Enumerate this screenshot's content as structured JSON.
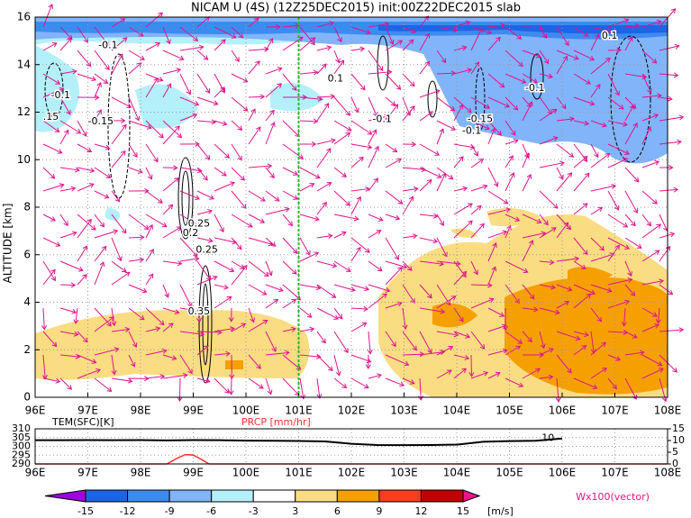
{
  "chart_data": {
    "type": "contour",
    "title": "NICAM U (4S) (12Z25DEC2015) init:00Z22DEC2015 slab",
    "y_label": "ALTITUDE [km]",
    "xlim": [
      96,
      108
    ],
    "xticks": [
      {
        "value": 96,
        "label": "96E"
      },
      {
        "value": 97,
        "label": "97E"
      },
      {
        "value": 98,
        "label": "98E"
      },
      {
        "value": 99,
        "label": "99E"
      },
      {
        "value": 100,
        "label": "100E"
      },
      {
        "value": 101,
        "label": "101E"
      },
      {
        "value": 102,
        "label": "102E"
      },
      {
        "value": 103,
        "label": "103E"
      },
      {
        "value": 104,
        "label": "104E"
      },
      {
        "value": 105,
        "label": "105E"
      },
      {
        "value": 106,
        "label": "106E"
      },
      {
        "value": 107,
        "label": "107E"
      },
      {
        "value": 108,
        "label": "108E"
      }
    ],
    "ylim": [
      0,
      16
    ],
    "yticks": [
      0,
      2,
      4,
      6,
      8,
      10,
      12,
      14,
      16
    ],
    "grid": true,
    "marker_line": {
      "x": 101,
      "color": "#22bb22"
    },
    "contour_labels": [
      {
        "text": "-0.1",
        "x": 96.3,
        "y": 12.7
      },
      {
        "text": ".15",
        "x": 96.15,
        "y": 11.8
      },
      {
        "text": "-0.1",
        "x": 97.2,
        "y": 14.8
      },
      {
        "text": "-0.15",
        "x": 97.0,
        "y": 11.6
      },
      {
        "text": "0.25",
        "x": 98.9,
        "y": 7.3
      },
      {
        "text": "0.2",
        "x": 98.8,
        "y": 6.9
      },
      {
        "text": "0.25",
        "x": 99.05,
        "y": 6.2
      },
      {
        "text": "0.35",
        "x": 98.9,
        "y": 3.6
      },
      {
        "text": "0.1",
        "x": 101.55,
        "y": 13.4
      },
      {
        "text": "-0.1",
        "x": 102.4,
        "y": 11.7
      },
      {
        "text": "-0.15",
        "x": 104.2,
        "y": 11.7
      },
      {
        "text": "-0.1",
        "x": 104.1,
        "y": 11.2
      },
      {
        "text": "-0.1",
        "x": 105.3,
        "y": 13.0
      },
      {
        "text": "0.1",
        "x": 106.75,
        "y": 15.2
      }
    ],
    "lower_panel": {
      "left_label": "TEM(SFC)[K]",
      "right_label": "PRCP [mm/hr]",
      "ylim": [
        290,
        310
      ],
      "yticks": [
        290,
        295,
        300,
        305,
        310
      ],
      "y2lim": [
        0,
        15
      ],
      "y2ticks": [
        0,
        5,
        10,
        15
      ],
      "annotation": {
        "text": "10",
        "x": 105.85,
        "y": 304.5
      },
      "series": [
        {
          "name": "TEM(SFC)",
          "color": "#000000",
          "x": [
            96,
            96.5,
            97,
            97.5,
            98,
            98.5,
            99,
            99.5,
            100,
            100.5,
            101,
            101.5,
            102,
            102.5,
            103,
            103.5,
            104,
            104.5,
            105,
            105.5,
            106
          ],
          "values": [
            303.5,
            303.5,
            303.6,
            303.5,
            303.6,
            303.4,
            303.6,
            303.5,
            303.3,
            303.2,
            303.1,
            302.8,
            301.5,
            300.8,
            300.7,
            300.8,
            301.0,
            302.6,
            303.0,
            303.2,
            304.5
          ]
        },
        {
          "name": "PRCP",
          "color": "#ff3030",
          "axis": "y2",
          "x": [
            96,
            98.5,
            98.7,
            98.85,
            99.0,
            99.15,
            99.3,
            101,
            104,
            106,
            108
          ],
          "values": [
            0,
            0,
            2.5,
            4,
            3.8,
            2,
            0,
            0,
            0,
            0,
            0
          ]
        }
      ]
    },
    "colorbar": {
      "levels": [
        -15,
        -12,
        -9,
        -6,
        -3,
        3,
        6,
        9,
        12,
        15
      ],
      "colors": [
        "#a000e0",
        "#1e64e6",
        "#3c8cf0",
        "#82b4fa",
        "#b4f0fa",
        "#ffffff",
        "#fadc82",
        "#f5a000",
        "#fa3c1e",
        "#c00000",
        "#f0148c"
      ],
      "unit": "[m/s]",
      "vector_label": "Wx100(vector)"
    }
  }
}
